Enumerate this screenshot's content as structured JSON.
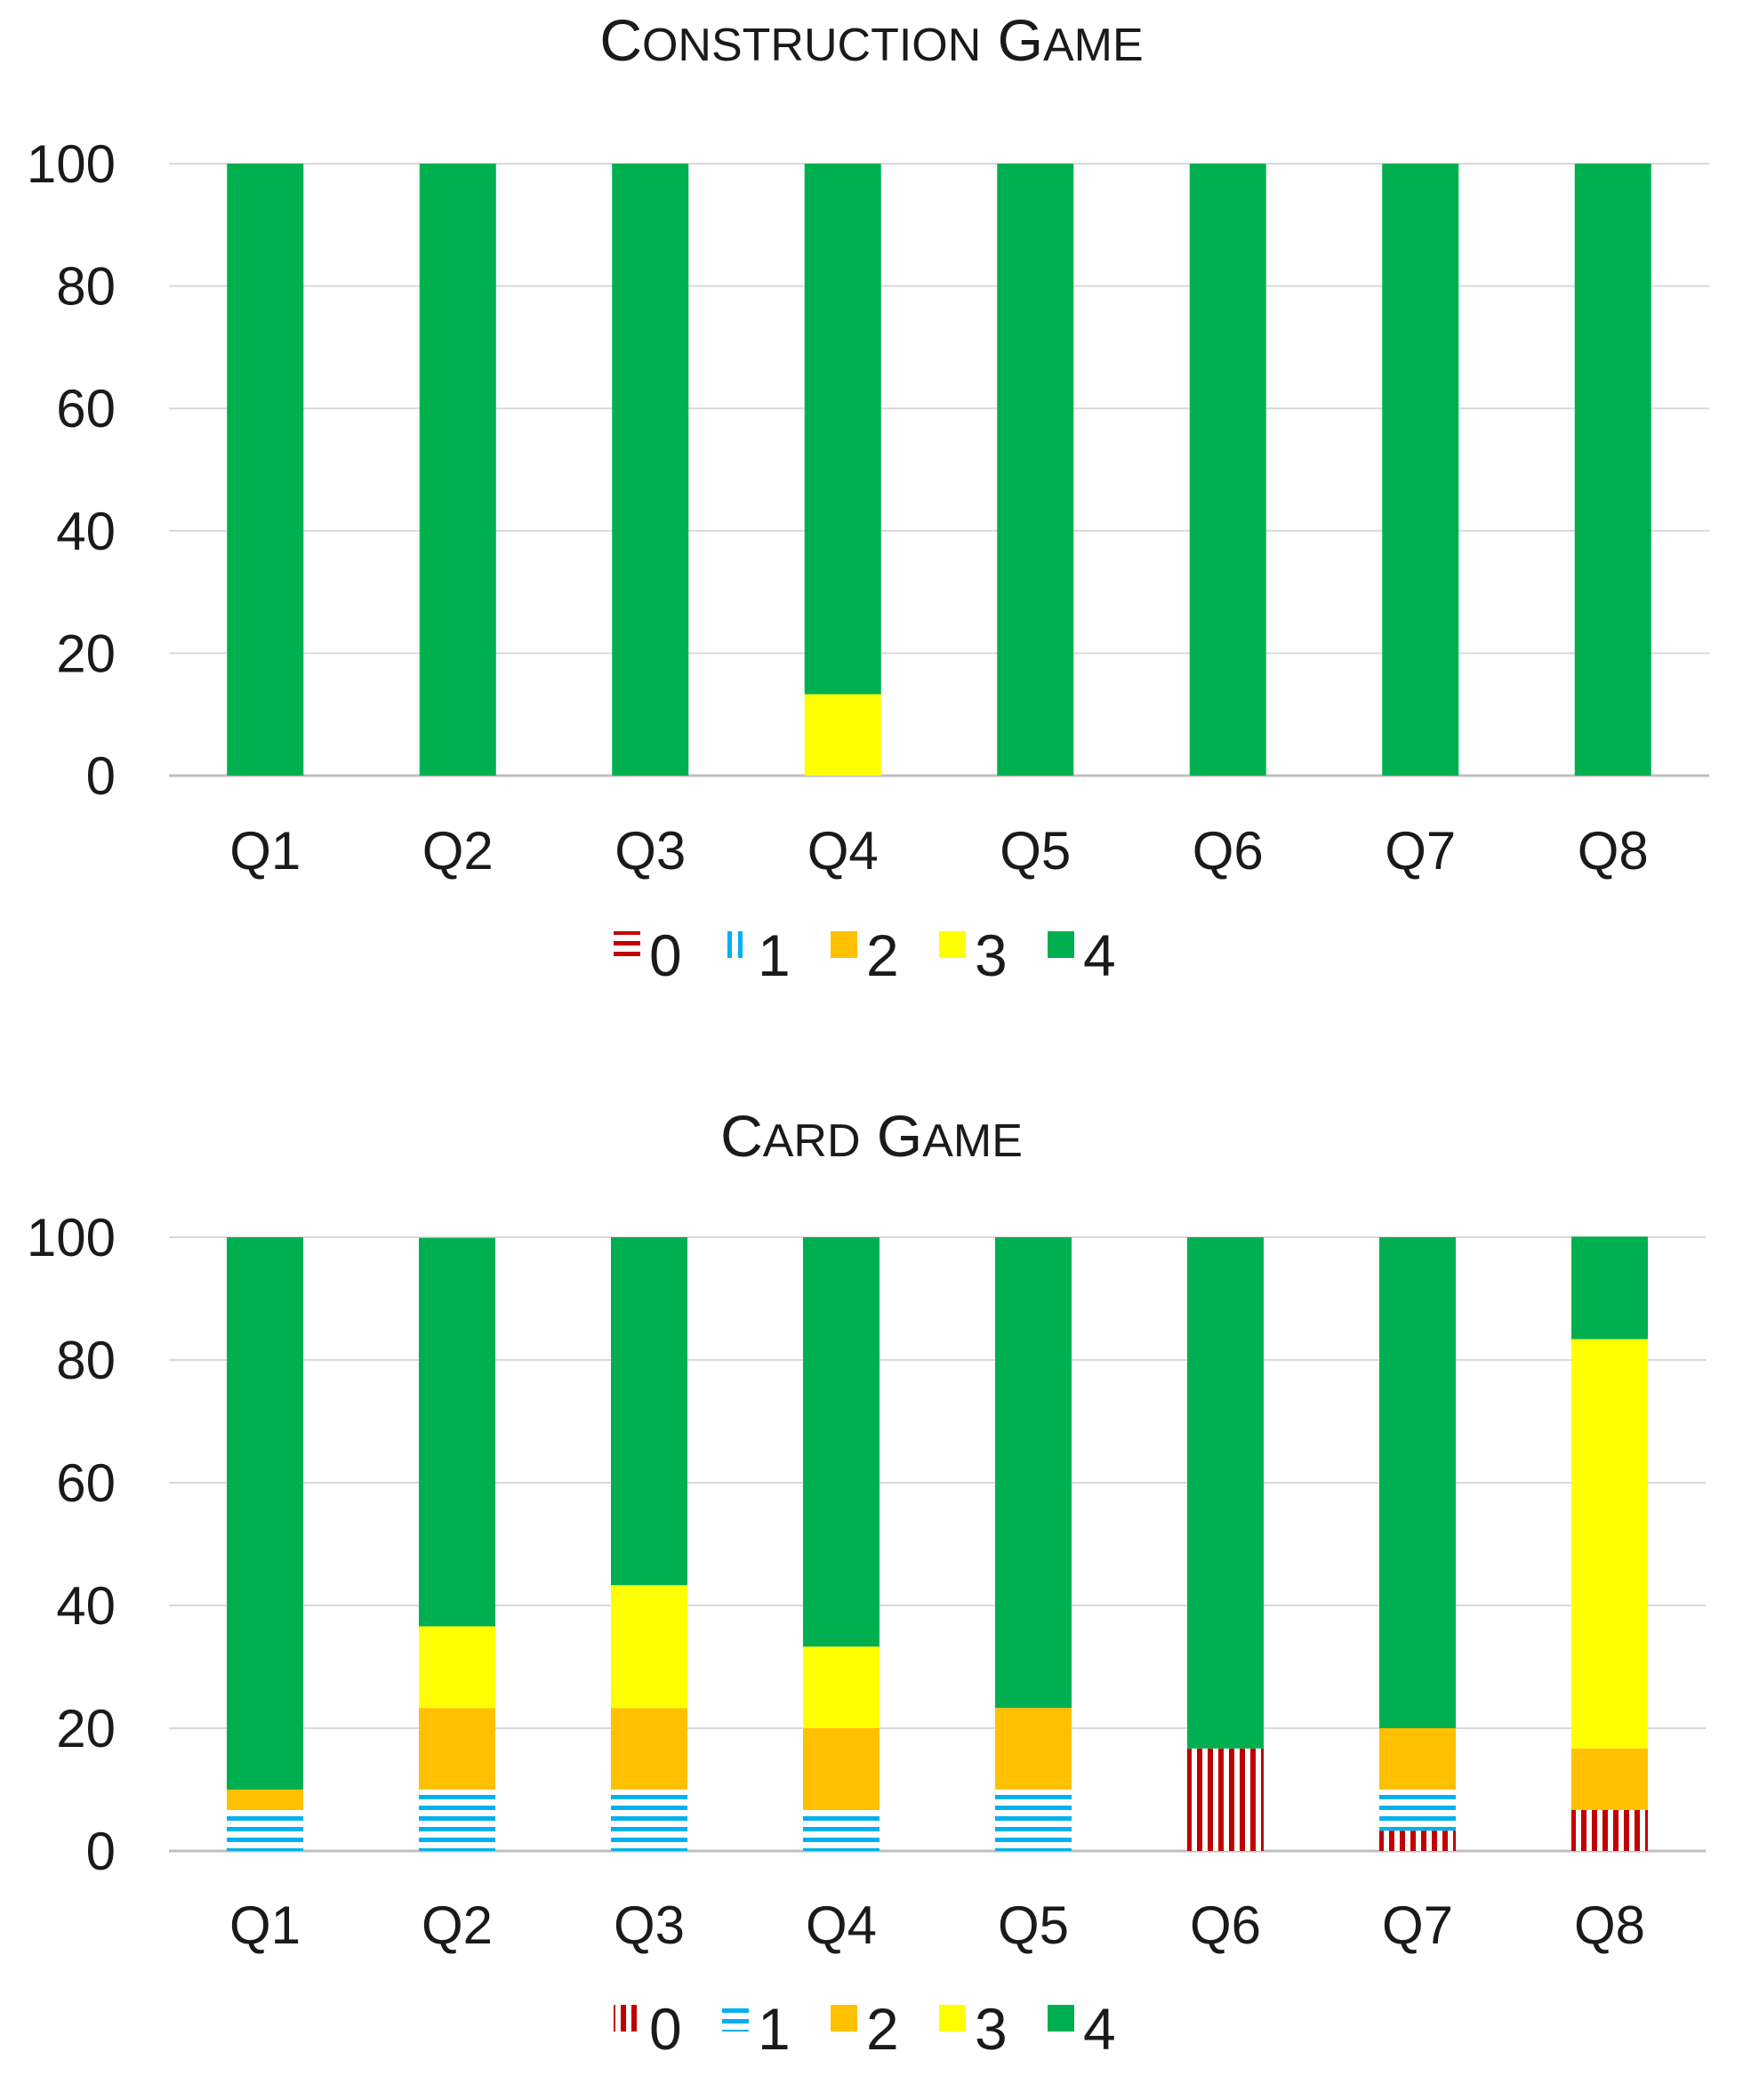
{
  "chart_data": [
    {
      "type": "bar",
      "stacked": true,
      "title": "Construction Game",
      "xlabel": "",
      "ylabel": "",
      "ylim": [
        0,
        100
      ],
      "yticks": [
        "0",
        "20",
        "40",
        "60",
        "80",
        "100"
      ],
      "grid": true,
      "legend_position": "bottom",
      "categories": [
        "Q1",
        "Q2",
        "Q3",
        "Q4",
        "Q5",
        "Q6",
        "Q7",
        "Q8"
      ],
      "series": [
        {
          "name": "0",
          "color": "#c00000",
          "pattern": "horizontal-stripes",
          "values": [
            0,
            0,
            0,
            0,
            0,
            0,
            0,
            0
          ]
        },
        {
          "name": "1",
          "color": "#00b0f0",
          "pattern": "vertical-stripes",
          "values": [
            0,
            0,
            0,
            0,
            0,
            0,
            0,
            0
          ]
        },
        {
          "name": "2",
          "color": "#ffc000",
          "pattern": "solid",
          "values": [
            0,
            0,
            0,
            0,
            0,
            0,
            0,
            0
          ]
        },
        {
          "name": "3",
          "color": "#ffff00",
          "pattern": "solid",
          "values": [
            0,
            0,
            0,
            13.3,
            0,
            0,
            0,
            0
          ]
        },
        {
          "name": "4",
          "color": "#00b050",
          "pattern": "solid",
          "values": [
            100,
            100,
            100,
            86.7,
            100,
            100,
            100,
            100
          ]
        }
      ]
    },
    {
      "type": "bar",
      "stacked": true,
      "title": "Card Game",
      "xlabel": "",
      "ylabel": "",
      "ylim": [
        0,
        100
      ],
      "yticks": [
        "0",
        "20",
        "40",
        "60",
        "80",
        "100"
      ],
      "grid": true,
      "legend_position": "bottom",
      "categories": [
        "Q1",
        "Q2",
        "Q3",
        "Q4",
        "Q5",
        "Q6",
        "Q7",
        "Q8"
      ],
      "series": [
        {
          "name": "0",
          "color": "#c00000",
          "pattern": "vertical-stripes",
          "values": [
            0,
            0,
            0,
            0,
            0,
            16.7,
            3.3,
            6.7
          ]
        },
        {
          "name": "1",
          "color": "#00b0f0",
          "pattern": "horizontal-stripes",
          "values": [
            6.7,
            10,
            10,
            6.7,
            10,
            0,
            6.7,
            0
          ]
        },
        {
          "name": "2",
          "color": "#ffc000",
          "pattern": "solid",
          "values": [
            3.3,
            13.3,
            13.3,
            13.3,
            13.3,
            0,
            10,
            10
          ]
        },
        {
          "name": "3",
          "color": "#ffff00",
          "pattern": "solid",
          "values": [
            0,
            13.3,
            20,
            13.3,
            0,
            0,
            0,
            66.7
          ]
        },
        {
          "name": "4",
          "color": "#00b050",
          "pattern": "solid",
          "values": [
            90,
            63.3,
            56.7,
            66.7,
            76.7,
            83.3,
            80,
            16.7
          ]
        }
      ]
    }
  ]
}
